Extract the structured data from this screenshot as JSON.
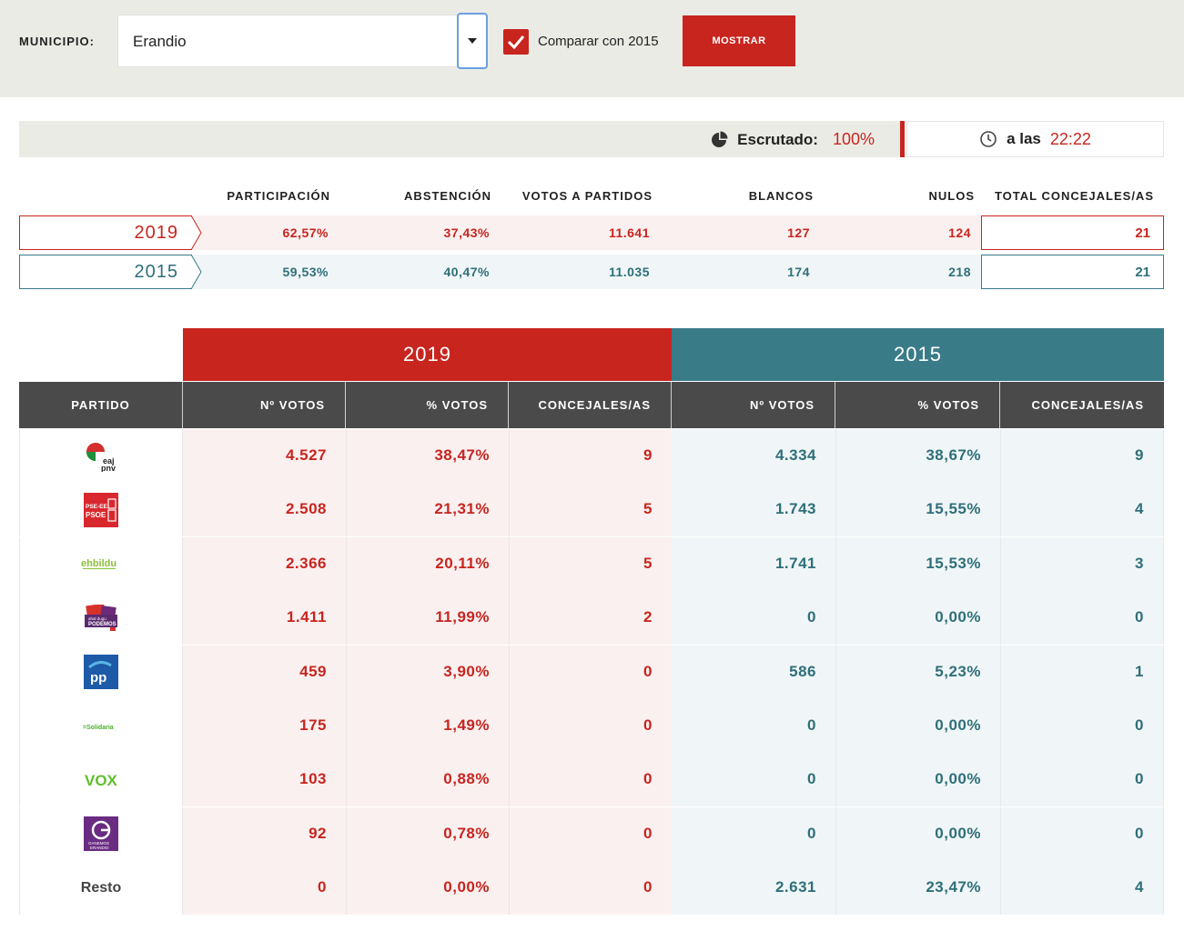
{
  "filter": {
    "municipio_label": "MUNICIPIO:",
    "municipio_value": "Erandio",
    "compare_checked": true,
    "compare_label": "Comparar con 2015",
    "submit_label": "MOSTRAR"
  },
  "status": {
    "scrutinized_label": "Escrutado:",
    "scrutinized_value": "100%",
    "time_label": "a las",
    "time_value": "22:22"
  },
  "summary": {
    "headers": [
      "PARTICIPACIÓN",
      "ABSTENCIÓN",
      "VOTOS A PARTIDOS",
      "BLANCOS",
      "NULOS",
      "TOTAL CONCEJALES/AS"
    ],
    "rows": [
      {
        "year": "2019",
        "values": [
          "62,57%",
          "37,43%",
          "11.641",
          "127",
          "124"
        ],
        "total": "21"
      },
      {
        "year": "2015",
        "values": [
          "59,53%",
          "40,47%",
          "11.035",
          "174",
          "218"
        ],
        "total": "21"
      }
    ]
  },
  "results": {
    "year_current": "2019",
    "year_previous": "2015",
    "headers": {
      "party": "PARTIDO",
      "votes": "Nº VOTOS",
      "pct": "% VOTOS",
      "seats": "CONCEJALES/AS"
    },
    "rows": [
      {
        "party_logo": "eaj-pnv-logo",
        "logo_text": "eaj pnv",
        "v19": "4.527",
        "p19": "38,47%",
        "s19": "9",
        "v15": "4.334",
        "p15": "38,67%",
        "s15": "9"
      },
      {
        "party_logo": "pse-psoe-logo",
        "logo_text": "PSE-EE PSOE",
        "v19": "2.508",
        "p19": "21,31%",
        "s19": "5",
        "v15": "1.743",
        "p15": "15,55%",
        "s15": "4"
      },
      {
        "party_logo": "ehbildu-logo",
        "logo_text": "ehbildu",
        "v19": "2.366",
        "p19": "20,11%",
        "s19": "5",
        "v15": "1.741",
        "p15": "15,53%",
        "s15": "3"
      },
      {
        "party_logo": "podemos-logo",
        "logo_text": "ahal dugu PODEMOS",
        "v19": "1.411",
        "p19": "11,99%",
        "s19": "2",
        "v15": "0",
        "p15": "0,00%",
        "s15": "0"
      },
      {
        "party_logo": "pp-logo",
        "logo_text": "PP",
        "v19": "459",
        "p19": "3,90%",
        "s19": "0",
        "v15": "586",
        "p15": "5,23%",
        "s15": "1"
      },
      {
        "party_logo": "solidaria-logo",
        "logo_text": "=Solidaria",
        "v19": "175",
        "p19": "1,49%",
        "s19": "0",
        "v15": "0",
        "p15": "0,00%",
        "s15": "0"
      },
      {
        "party_logo": "vox-logo",
        "logo_text": "VOX",
        "v19": "103",
        "p19": "0,88%",
        "s19": "0",
        "v15": "0",
        "p15": "0,00%",
        "s15": "0"
      },
      {
        "party_logo": "ganemos-erandio-logo",
        "logo_text": "GANEMOS ERANDIO",
        "v19": "92",
        "p19": "0,78%",
        "s19": "0",
        "v15": "0",
        "p15": "0,00%",
        "s15": "0"
      },
      {
        "party_logo": "",
        "party_name": "Resto",
        "v19": "0",
        "p19": "0,00%",
        "s19": "0",
        "v15": "2.631",
        "p15": "23,47%",
        "s15": "4"
      }
    ]
  },
  "colors": {
    "accent_red": "#c8251f",
    "accent_teal": "#3a7b88",
    "header_dark": "#4a4a4a"
  }
}
